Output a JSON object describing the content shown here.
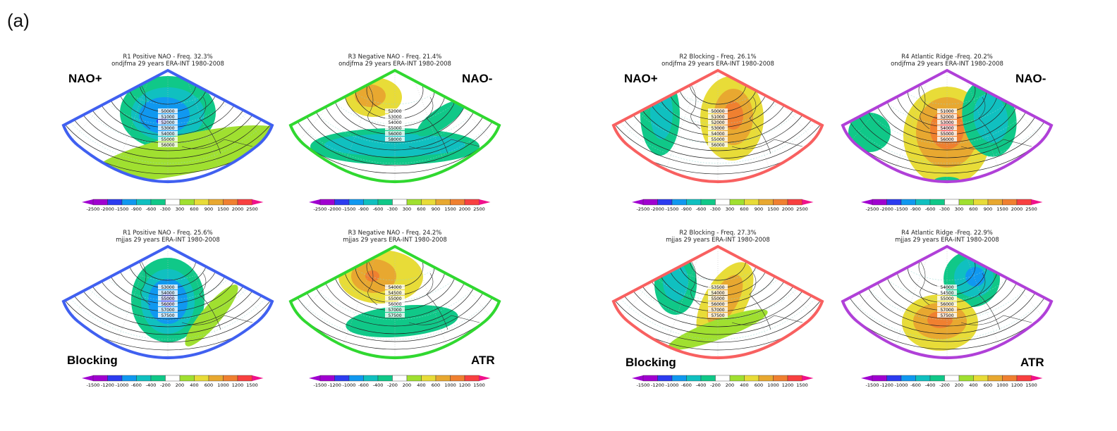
{
  "figure_label": "(a)",
  "colorbars": {
    "winter": [
      "-2500",
      "-2000",
      "-1500",
      "-900",
      "-600",
      "-300",
      "300",
      "600",
      "900",
      "1500",
      "2000",
      "2500"
    ],
    "summer": [
      "-1500",
      "-1200",
      "-1000",
      "-600",
      "-400",
      "-200",
      "200",
      "400",
      "600",
      "1000",
      "1200",
      "1500"
    ],
    "colors": [
      "#a000d0",
      "#2c3cf0",
      "#1098f0",
      "#10c0c0",
      "#10c888",
      "#ffffff",
      "#a0e030",
      "#e8dc38",
      "#e8a830",
      "#f08030",
      "#f84040",
      "#f0108c"
    ]
  },
  "panels": [
    {
      "title": "R1 Positive NAO - Freq. 32.3%",
      "subtitle": "ondjfma 29 years ERA-INT 1980-2008",
      "regime": "NAO+",
      "border": "#4060f0",
      "scale": "winter",
      "contours": [
        "50000",
        "51000",
        "52000",
        "53000",
        "54000",
        "55000",
        "56000"
      ]
    },
    {
      "title": "R3 Negative NAO - Freq. 21.4%",
      "subtitle": "ondjfma 29 years ERA-INT 1980-2008",
      "regime": "NAO-",
      "border": "#30d830",
      "scale": "winter",
      "contours": [
        "52000",
        "53000",
        "54000",
        "55000",
        "56000",
        "58000"
      ]
    },
    {
      "title": "R1 Positive NAO - Freq. 25.6%",
      "subtitle": "mjjas 29 years ERA-INT 1980-2008",
      "regime": "NAO+",
      "border": "#4060f0",
      "scale": "summer",
      "contours": [
        "53000",
        "54000",
        "55000",
        "56000",
        "57000",
        "57500"
      ]
    },
    {
      "title": "R3 Negative NAO - Freq. 24.2%",
      "subtitle": "mjjas 29 years ERA-INT 1980-2008",
      "regime": "NAO-",
      "border": "#30d830",
      "scale": "summer",
      "contours": [
        "54000",
        "54500",
        "55000",
        "56000",
        "57000",
        "57500"
      ]
    },
    {
      "title": "R2 Blocking - Freq. 26.1%",
      "subtitle": "ondjfma 29 years ERA-INT 1980-2008",
      "regime": "Blocking",
      "border": "#f86060",
      "scale": "winter",
      "contours": [
        "50000",
        "51000",
        "52000",
        "53000",
        "54000",
        "55000",
        "56000"
      ]
    },
    {
      "title": "R4 Atlantic Ridge -Freq. 20.2%",
      "subtitle": "ondjfma 29 years ERA-INT 1980-2008",
      "regime": "ATR",
      "border": "#b040d8",
      "scale": "winter",
      "contours": [
        "51000",
        "52000",
        "53000",
        "54000",
        "55000",
        "56000"
      ]
    },
    {
      "title": "R2 Blocking - Freq. 27.3%",
      "subtitle": "mjjas 29 years ERA-INT 1980-2008",
      "regime": "Blocking",
      "border": "#f86060",
      "scale": "summer",
      "contours": [
        "53500",
        "54000",
        "55000",
        "56000",
        "57000",
        "57500"
      ]
    },
    {
      "title": "R4 Atlantic Ridge -Freq. 22.9%",
      "subtitle": "mjjas 29 years ERA-INT 1980-2008",
      "regime": "ATR",
      "border": "#b040d8",
      "scale": "summer",
      "contours": [
        "54000",
        "54500",
        "55000",
        "56000",
        "57000",
        "57500"
      ]
    }
  ]
}
